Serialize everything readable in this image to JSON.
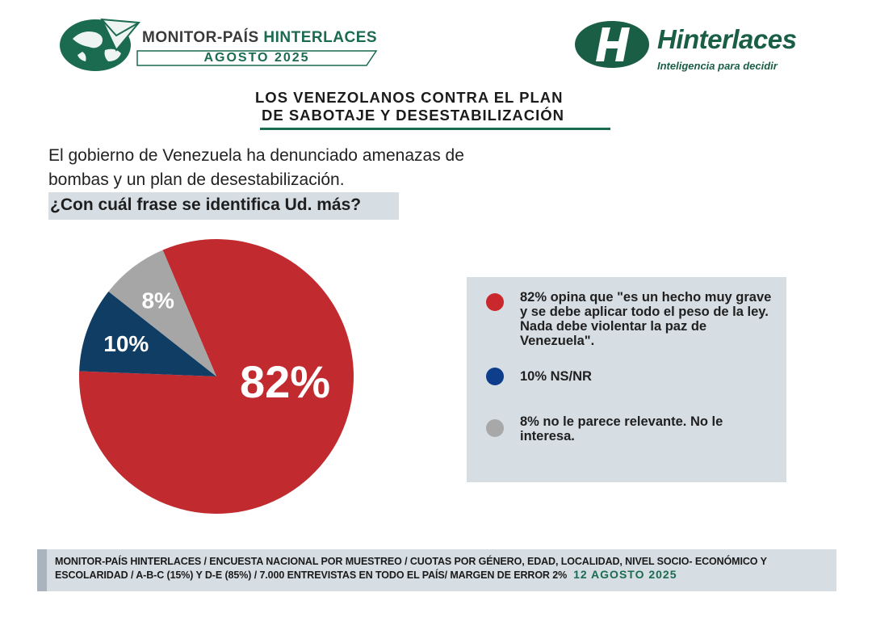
{
  "header": {
    "monitor_title_part1": "MONITOR-PAÍS ",
    "monitor_title_part2": "HINTERLACES",
    "monitor_subtitle": "AGOSTO 2025",
    "brand_name": "Hinterlaces",
    "brand_tagline": "Inteligencia para decidir"
  },
  "headline": {
    "line1": "LOS VENEZOLANOS CONTRA EL PLAN",
    "line2": "DE SABOTAJE Y DESESTABILIZACIÓN"
  },
  "intro": {
    "line1": "El gobierno de Venezuela ha denunciado amenazas de",
    "line2": "bombas y un plan de desestabilización.",
    "question": "¿Con cuál frase se identifica Ud. más?"
  },
  "legend": {
    "items": [
      {
        "text": "82% opina que \"es un hecho muy grave y se debe aplicar todo el peso de la ley. Nada debe violentar la paz de Venezuela\".",
        "color": "#c9282d"
      },
      {
        "text": "10% NS/NR",
        "color": "#0e3d8c"
      },
      {
        "text": "8%  no le parece relevante. No le interesa.",
        "color": "#a8a8a8"
      }
    ]
  },
  "chart_data": {
    "type": "pie",
    "title": "",
    "labels": [
      "82%",
      "10%",
      "8%"
    ],
    "values": [
      82,
      10,
      8
    ],
    "colors": [
      "#c12a2f",
      "#0f3d63",
      "#a6a6a6"
    ]
  },
  "footer": {
    "text": "MONITOR-PAÍS HINTERLACES / ENCUESTA NACIONAL POR MUESTREO / CUOTAS POR GÉNERO, EDAD, LOCALIDAD, NIVEL SOCIO- ECONÓMICO Y ESCOLARIDAD / A-B-C (15%) Y D-E (85%) / 7.000 ENTREVISTAS EN TODO EL PAÍS/ MARGEN DE ERROR 2%",
    "date": "12 AGOSTO 2025"
  }
}
